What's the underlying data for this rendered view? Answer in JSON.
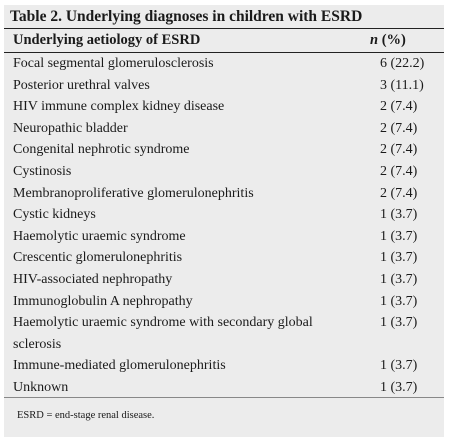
{
  "table": {
    "caption": "Table 2. Underlying diagnoses in children with ESRD",
    "header": {
      "col1": "Underlying aetiology of ESRD",
      "col2_italic": "n",
      "col2_rest": " (%)"
    },
    "rows": [
      {
        "label": "Focal segmental glomerulosclerosis",
        "value": "6 (22.2)"
      },
      {
        "label": "Posterior urethral valves",
        "value": "3 (11.1)"
      },
      {
        "label": "HIV immune complex kidney disease",
        "value": "2 (7.4)"
      },
      {
        "label": "Neuropathic bladder",
        "value": "2 (7.4)"
      },
      {
        "label": "Congenital nephrotic syndrome",
        "value": "2 (7.4)"
      },
      {
        "label": "Cystinosis",
        "value": "2 (7.4)"
      },
      {
        "label": "Membranoproliferative glomerulonephritis",
        "value": "2 (7.4)"
      },
      {
        "label": "Cystic kidneys",
        "value": "1 (3.7)"
      },
      {
        "label": "Haemolytic uraemic syndrome",
        "value": "1 (3.7)"
      },
      {
        "label": "Crescentic glomerulonephritis",
        "value": "1 (3.7)"
      },
      {
        "label": "HIV-associated nephropathy",
        "value": "1 (3.7)"
      },
      {
        "label": "Immunoglobulin A nephropathy",
        "value": "1 (3.7)"
      },
      {
        "label": "Haemolytic uraemic syndrome with secondary global sclerosis",
        "value": "1 (3.7)"
      },
      {
        "label": "Immune-mediated glomerulonephritis",
        "value": "1 (3.7)"
      },
      {
        "label": "Unknown",
        "value": "1 (3.7)"
      }
    ],
    "footnote": "ESRD = end-stage renal disease."
  }
}
